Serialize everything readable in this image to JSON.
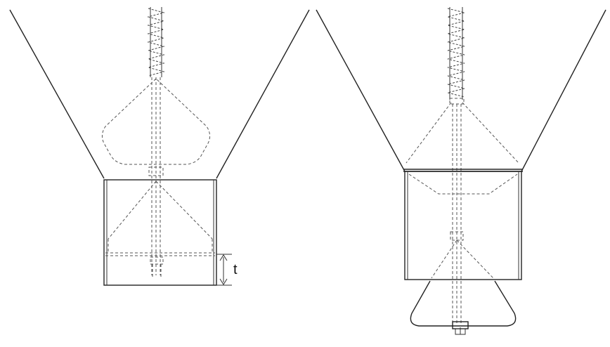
{
  "labels": {
    "thickness": "t"
  }
}
